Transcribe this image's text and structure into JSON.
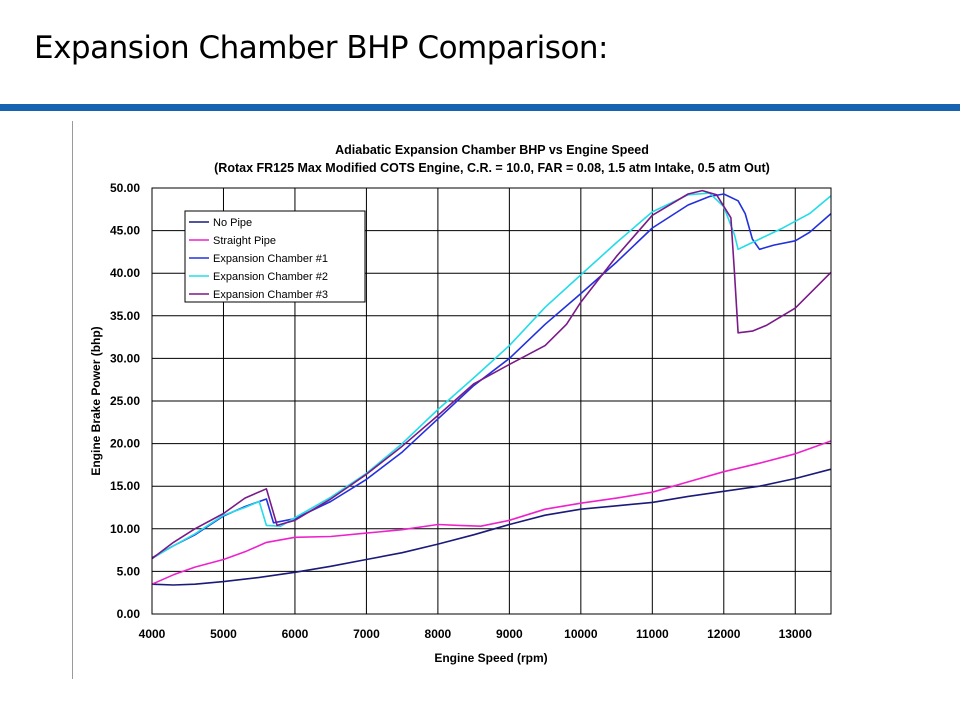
{
  "slide": {
    "title": "Expansion Chamber BHP Comparison:",
    "accent_color": "#1763b1"
  },
  "chart_data": {
    "type": "line",
    "title": "Adiabatic Expansion Chamber BHP vs Engine Speed",
    "subtitle": "(Rotax FR125 Max Modified COTS Engine, C.R. = 10.0, FAR = 0.08, 1.5 atm Intake, 0.5 atm Out)",
    "xlabel": "Engine Speed (rpm)",
    "ylabel": "Engine Brake Power (bhp)",
    "xlim": [
      4000,
      13500
    ],
    "ylim": [
      0,
      50
    ],
    "x_ticks": [
      "4000",
      "5000",
      "6000",
      "7000",
      "8000",
      "9000",
      "10000",
      "11000",
      "12000",
      "13000"
    ],
    "y_ticks": [
      "0.00",
      "5.00",
      "10.00",
      "15.00",
      "20.00",
      "25.00",
      "30.00",
      "35.00",
      "40.00",
      "45.00",
      "50.00"
    ],
    "grid": true,
    "legend_position": "top-left",
    "series": [
      {
        "name": "No Pipe",
        "color": "#1a1a7a",
        "points": [
          [
            4000,
            3.5
          ],
          [
            4300,
            3.4
          ],
          [
            4600,
            3.5
          ],
          [
            5000,
            3.8
          ],
          [
            5500,
            4.3
          ],
          [
            6000,
            4.9
          ],
          [
            6500,
            5.6
          ],
          [
            7000,
            6.4
          ],
          [
            7500,
            7.2
          ],
          [
            8000,
            8.2
          ],
          [
            8500,
            9.3
          ],
          [
            9000,
            10.5
          ],
          [
            9500,
            11.6
          ],
          [
            10000,
            12.3
          ],
          [
            10500,
            12.7
          ],
          [
            11000,
            13.1
          ],
          [
            11500,
            13.8
          ],
          [
            12000,
            14.4
          ],
          [
            12500,
            15.0
          ],
          [
            13000,
            15.9
          ],
          [
            13500,
            17.0
          ]
        ]
      },
      {
        "name": "Straight Pipe",
        "color": "#ee22cc",
        "points": [
          [
            4000,
            3.5
          ],
          [
            4300,
            4.6
          ],
          [
            4600,
            5.5
          ],
          [
            5000,
            6.4
          ],
          [
            5300,
            7.3
          ],
          [
            5600,
            8.4
          ],
          [
            6000,
            9.0
          ],
          [
            6500,
            9.1
          ],
          [
            7000,
            9.5
          ],
          [
            7500,
            9.9
          ],
          [
            8000,
            10.5
          ],
          [
            8300,
            10.4
          ],
          [
            8600,
            10.3
          ],
          [
            9000,
            11.0
          ],
          [
            9500,
            12.3
          ],
          [
            10000,
            13.0
          ],
          [
            10500,
            13.6
          ],
          [
            11000,
            14.3
          ],
          [
            11500,
            15.5
          ],
          [
            12000,
            16.7
          ],
          [
            12500,
            17.7
          ],
          [
            13000,
            18.8
          ],
          [
            13500,
            20.3
          ]
        ]
      },
      {
        "name": "Expansion Chamber #1",
        "color": "#2230dd",
        "points": [
          [
            4000,
            6.6
          ],
          [
            4300,
            8.0
          ],
          [
            4600,
            9.3
          ],
          [
            5000,
            11.5
          ],
          [
            5300,
            12.6
          ],
          [
            5600,
            13.5
          ],
          [
            5700,
            10.7
          ],
          [
            6000,
            11.2
          ],
          [
            6500,
            13.2
          ],
          [
            7000,
            15.8
          ],
          [
            7500,
            19.0
          ],
          [
            8000,
            22.9
          ],
          [
            8500,
            26.8
          ],
          [
            9000,
            30.0
          ],
          [
            9500,
            34.0
          ],
          [
            10000,
            37.6
          ],
          [
            10500,
            41.3
          ],
          [
            11000,
            45.3
          ],
          [
            11500,
            48.0
          ],
          [
            11800,
            49.0
          ],
          [
            12000,
            49.3
          ],
          [
            12200,
            48.5
          ],
          [
            12300,
            47.0
          ],
          [
            12400,
            44.0
          ],
          [
            12500,
            42.8
          ],
          [
            12700,
            43.3
          ],
          [
            13000,
            43.8
          ],
          [
            13200,
            44.8
          ],
          [
            13500,
            47.0
          ]
        ]
      },
      {
        "name": "Expansion Chamber #2",
        "color": "#22dde8",
        "points": [
          [
            4000,
            6.5
          ],
          [
            4300,
            8.0
          ],
          [
            4600,
            9.4
          ],
          [
            5000,
            11.6
          ],
          [
            5300,
            12.5
          ],
          [
            5500,
            13.2
          ],
          [
            5600,
            10.4
          ],
          [
            5800,
            10.3
          ],
          [
            6000,
            11.3
          ],
          [
            6500,
            13.7
          ],
          [
            7000,
            16.5
          ],
          [
            7500,
            20.0
          ],
          [
            8000,
            24.0
          ],
          [
            8500,
            27.7
          ],
          [
            9000,
            31.5
          ],
          [
            9500,
            36.0
          ],
          [
            10000,
            39.8
          ],
          [
            10500,
            43.6
          ],
          [
            11000,
            47.2
          ],
          [
            11500,
            49.2
          ],
          [
            11800,
            49.4
          ],
          [
            12000,
            47.8
          ],
          [
            12150,
            44.5
          ],
          [
            12200,
            42.8
          ],
          [
            12300,
            43.2
          ],
          [
            12500,
            44.0
          ],
          [
            12800,
            45.2
          ],
          [
            13200,
            47.0
          ],
          [
            13500,
            49.1
          ]
        ]
      },
      {
        "name": "Expansion Chamber #3",
        "color": "#7a1a8a",
        "points": [
          [
            4000,
            6.5
          ],
          [
            4300,
            8.4
          ],
          [
            4600,
            10.0
          ],
          [
            5000,
            11.8
          ],
          [
            5300,
            13.6
          ],
          [
            5600,
            14.7
          ],
          [
            5750,
            10.4
          ],
          [
            6000,
            11.0
          ],
          [
            6500,
            13.5
          ],
          [
            7000,
            16.4
          ],
          [
            7500,
            19.7
          ],
          [
            8000,
            23.3
          ],
          [
            8500,
            27.0
          ],
          [
            9000,
            29.3
          ],
          [
            9500,
            31.5
          ],
          [
            9800,
            34.0
          ],
          [
            10000,
            36.6
          ],
          [
            10500,
            42.0
          ],
          [
            11000,
            46.8
          ],
          [
            11500,
            49.3
          ],
          [
            11700,
            49.7
          ],
          [
            11900,
            49.2
          ],
          [
            12100,
            46.5
          ],
          [
            12150,
            40.0
          ],
          [
            12200,
            33.0
          ],
          [
            12400,
            33.2
          ],
          [
            12600,
            33.9
          ],
          [
            13000,
            35.9
          ],
          [
            13500,
            40.1
          ]
        ]
      }
    ]
  }
}
